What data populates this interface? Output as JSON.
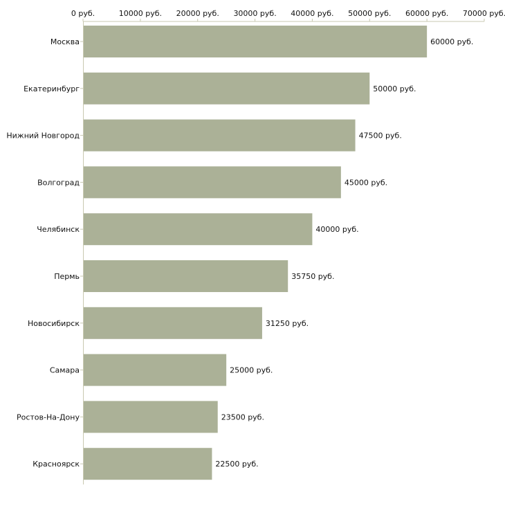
{
  "chart_data": {
    "type": "bar",
    "orientation": "horizontal",
    "title": "",
    "xlabel": "",
    "ylabel": "",
    "unit": "руб.",
    "xlim": [
      0,
      70000
    ],
    "xticks": [
      0,
      10000,
      20000,
      30000,
      40000,
      50000,
      60000,
      70000
    ],
    "xtick_labels": [
      "0 руб.",
      "10000 руб.",
      "20000 руб.",
      "30000 руб.",
      "40000 руб.",
      "50000 руб.",
      "60000 руб.",
      "70000 руб."
    ],
    "categories": [
      "Москва",
      "Екатеринбург",
      "Нижний Новгород",
      "Волгоград",
      "Челябинск",
      "Пермь",
      "Новосибирск",
      "Самара",
      "Ростов-На-Дону",
      "Красноярск"
    ],
    "values": [
      60000,
      50000,
      47500,
      45000,
      40000,
      35750,
      31250,
      25000,
      23500,
      22500
    ],
    "value_labels": [
      "60000 руб.",
      "50000 руб.",
      "47500 руб.",
      "45000 руб.",
      "40000 руб.",
      "35750 руб.",
      "31250 руб.",
      "25000 руб.",
      "23500 руб.",
      "22500 руб."
    ],
    "bar_color": "#abb197",
    "axis_color": "#c8c8b0",
    "grid": false,
    "legend": "none"
  }
}
